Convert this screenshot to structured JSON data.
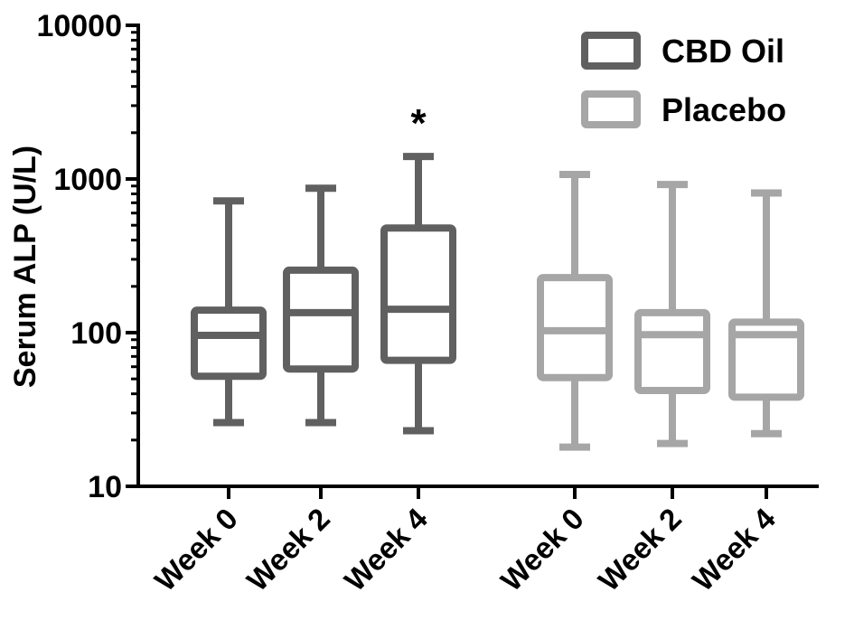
{
  "chart_data": {
    "type": "boxplot",
    "title": "",
    "ylabel": "Serum ALP (U/L)",
    "xlabel": "",
    "yscale": "log",
    "ylim": [
      10,
      10000
    ],
    "yticks": [
      {
        "value": 10,
        "label": "10"
      },
      {
        "value": 100,
        "label": "100"
      },
      {
        "value": 1000,
        "label": "1000"
      },
      {
        "value": 10000,
        "label": "10000"
      }
    ],
    "legend": {
      "position": "top-right"
    },
    "colors": {
      "CBD Oil": "#606060",
      "Placebo": "#a6a6a6"
    },
    "series": [
      {
        "name": "CBD Oil",
        "boxes": [
          {
            "category": "Week 0",
            "min": 26,
            "q1": 52,
            "median": 96,
            "q3": 140,
            "max": 720
          },
          {
            "category": "Week 2",
            "min": 26,
            "q1": 58,
            "median": 135,
            "q3": 255,
            "max": 870
          },
          {
            "category": "Week 4",
            "min": 23,
            "q1": 66,
            "median": 142,
            "q3": 480,
            "max": 1400,
            "annotation": "*"
          }
        ]
      },
      {
        "name": "Placebo",
        "boxes": [
          {
            "category": "Week 0",
            "min": 18,
            "q1": 51,
            "median": 103,
            "q3": 228,
            "max": 1070
          },
          {
            "category": "Week 2",
            "min": 19,
            "q1": 42,
            "median": 97,
            "q3": 135,
            "max": 920
          },
          {
            "category": "Week 4",
            "min": 22,
            "q1": 38,
            "median": 97,
            "q3": 117,
            "max": 810
          }
        ]
      }
    ]
  }
}
